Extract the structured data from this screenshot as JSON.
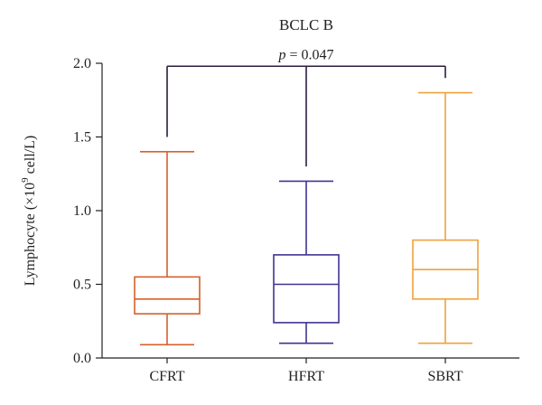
{
  "chart_data": {
    "type": "box",
    "title": "BCLC B",
    "ylabel": "Lymphocyte (×10",
    "ylabel_sup": "9",
    "ylabel_unit": " cell/L)",
    "xlabel": "",
    "ylim": [
      0,
      2.0
    ],
    "yticks": [
      "0.0",
      "0.5",
      "1.0",
      "1.5",
      "2.0"
    ],
    "categories": [
      "CFRT",
      "HFRT",
      "SBRT"
    ],
    "boxes": [
      {
        "name": "CFRT",
        "min": 0.09,
        "q1": 0.3,
        "median": 0.4,
        "q3": 0.55,
        "max": 1.4,
        "color": "#d4612c"
      },
      {
        "name": "HFRT",
        "min": 0.1,
        "q1": 0.24,
        "median": 0.5,
        "q3": 0.7,
        "max": 1.2,
        "color": "#3f3493"
      },
      {
        "name": "SBRT",
        "min": 0.1,
        "q1": 0.4,
        "median": 0.6,
        "q3": 0.8,
        "max": 1.8,
        "color": "#f0a23b"
      }
    ],
    "comparison": {
      "groups": [
        "CFRT",
        "SBRT"
      ],
      "label_italic": "p",
      "label_rest": " = 0.047",
      "bracket_color": "#2b1d3f",
      "bracket_level": 1.98,
      "left_drop_to": 1.5,
      "right_drop_to": 1.9,
      "center_drop_to": 1.3
    }
  }
}
